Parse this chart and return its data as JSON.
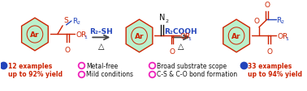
{
  "bg_color": "#ffffff",
  "fig_width": 3.78,
  "fig_height": 1.14,
  "dpi": 100,
  "bullet_blue": "#2244bb",
  "bullet_pink": "#ee22bb",
  "left_bullet_lines": [
    "12 examples",
    "up to 92% yield"
  ],
  "right_bullet_lines": [
    "33 examples",
    "up to 94% yield"
  ],
  "center_bullets_col1": [
    "Metal-free",
    "Mild conditions"
  ],
  "center_bullets_col2": [
    "Broad substrate scope",
    "C-S & C-O bond formation"
  ],
  "arrow_left_label_top": "R₂-SH",
  "arrow_left_label_bot": "△",
  "arrow_right_label_top": "R₂COOH",
  "arrow_right_label_bot": "△",
  "red": "#cc2200",
  "blue": "#2244bb",
  "black": "#111111",
  "pink": "#ee22bb",
  "ring_fill": "#bbf0cc",
  "ring_edge": "#cc2200"
}
